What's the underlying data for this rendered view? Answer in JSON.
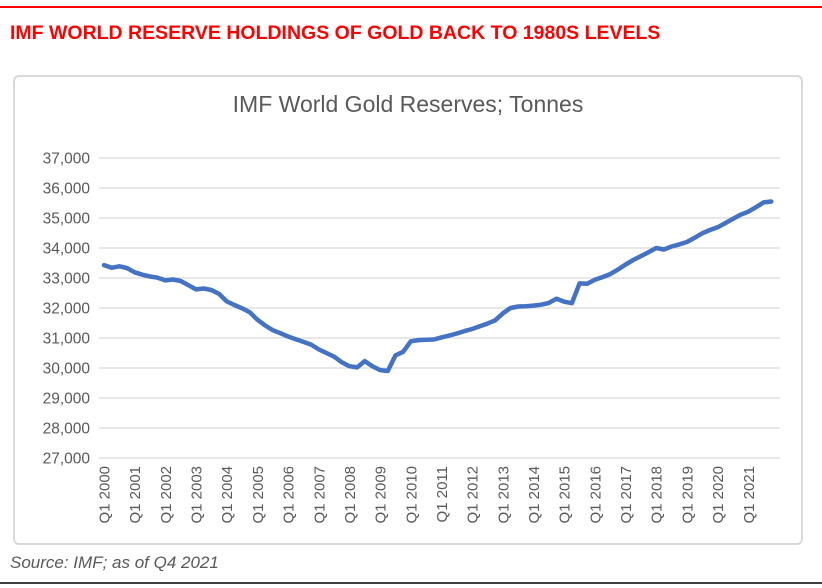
{
  "header": {
    "headline": "IMF WORLD RESERVE HOLDINGS OF GOLD BACK TO 1980S LEVELS",
    "headline_color": "#ff0000"
  },
  "footer": {
    "source": "Source: IMF; as of Q4 2021"
  },
  "chart_data": {
    "type": "line",
    "title": "IMF World Gold Reserves; Tonnes",
    "xlabel": "",
    "ylabel": "",
    "ylim": [
      27000,
      37000
    ],
    "ytick_step": 1000,
    "y_tick_labels": [
      "37,000",
      "36,000",
      "35,000",
      "34,000",
      "33,000",
      "32,000",
      "31,000",
      "30,000",
      "29,000",
      "28,000",
      "27,000"
    ],
    "x_tick_labels": [
      "Q1 2000",
      "Q1 2001",
      "Q1 2002",
      "Q1 2003",
      "Q1 2004",
      "Q1 2005",
      "Q1 2006",
      "Q1 2007",
      "Q1 2008",
      "Q1 2009",
      "Q1 2010",
      "Q1 2011",
      "Q1 2012",
      "Q1 2013",
      "Q1 2014",
      "Q1 2015",
      "Q1 2016",
      "Q1 2017",
      "Q1 2018",
      "Q1 2019",
      "Q1 2020",
      "Q1 2021"
    ],
    "frequency": "quarterly",
    "grid": true,
    "legend": false,
    "line_color": "#4472C4",
    "gridline_color": "#d9d9d9",
    "axis_text_color": "#595959",
    "series": [
      {
        "name": "World gold reserves (tonnes)",
        "x_start": "Q1 2000",
        "x_end": "Q4 2021",
        "values": [
          33430,
          33340,
          33390,
          33330,
          33190,
          33110,
          33050,
          33010,
          32920,
          32950,
          32900,
          32760,
          32620,
          32650,
          32600,
          32470,
          32220,
          32100,
          31990,
          31860,
          31610,
          31420,
          31260,
          31160,
          31050,
          30960,
          30870,
          30780,
          30620,
          30500,
          30380,
          30190,
          30060,
          30020,
          30230,
          30060,
          29930,
          29900,
          30420,
          30540,
          30890,
          30930,
          30940,
          30950,
          31020,
          31080,
          31150,
          31230,
          31300,
          31390,
          31480,
          31590,
          31820,
          32000,
          32050,
          32060,
          32080,
          32110,
          32170,
          32310,
          32210,
          32160,
          32820,
          32810,
          32940,
          33030,
          33130,
          33280,
          33450,
          33600,
          33730,
          33860,
          34000,
          33950,
          34050,
          34120,
          34200,
          34340,
          34490,
          34600,
          34690,
          34830,
          34970,
          35110,
          35210,
          35360,
          35520,
          35550
        ]
      }
    ]
  }
}
